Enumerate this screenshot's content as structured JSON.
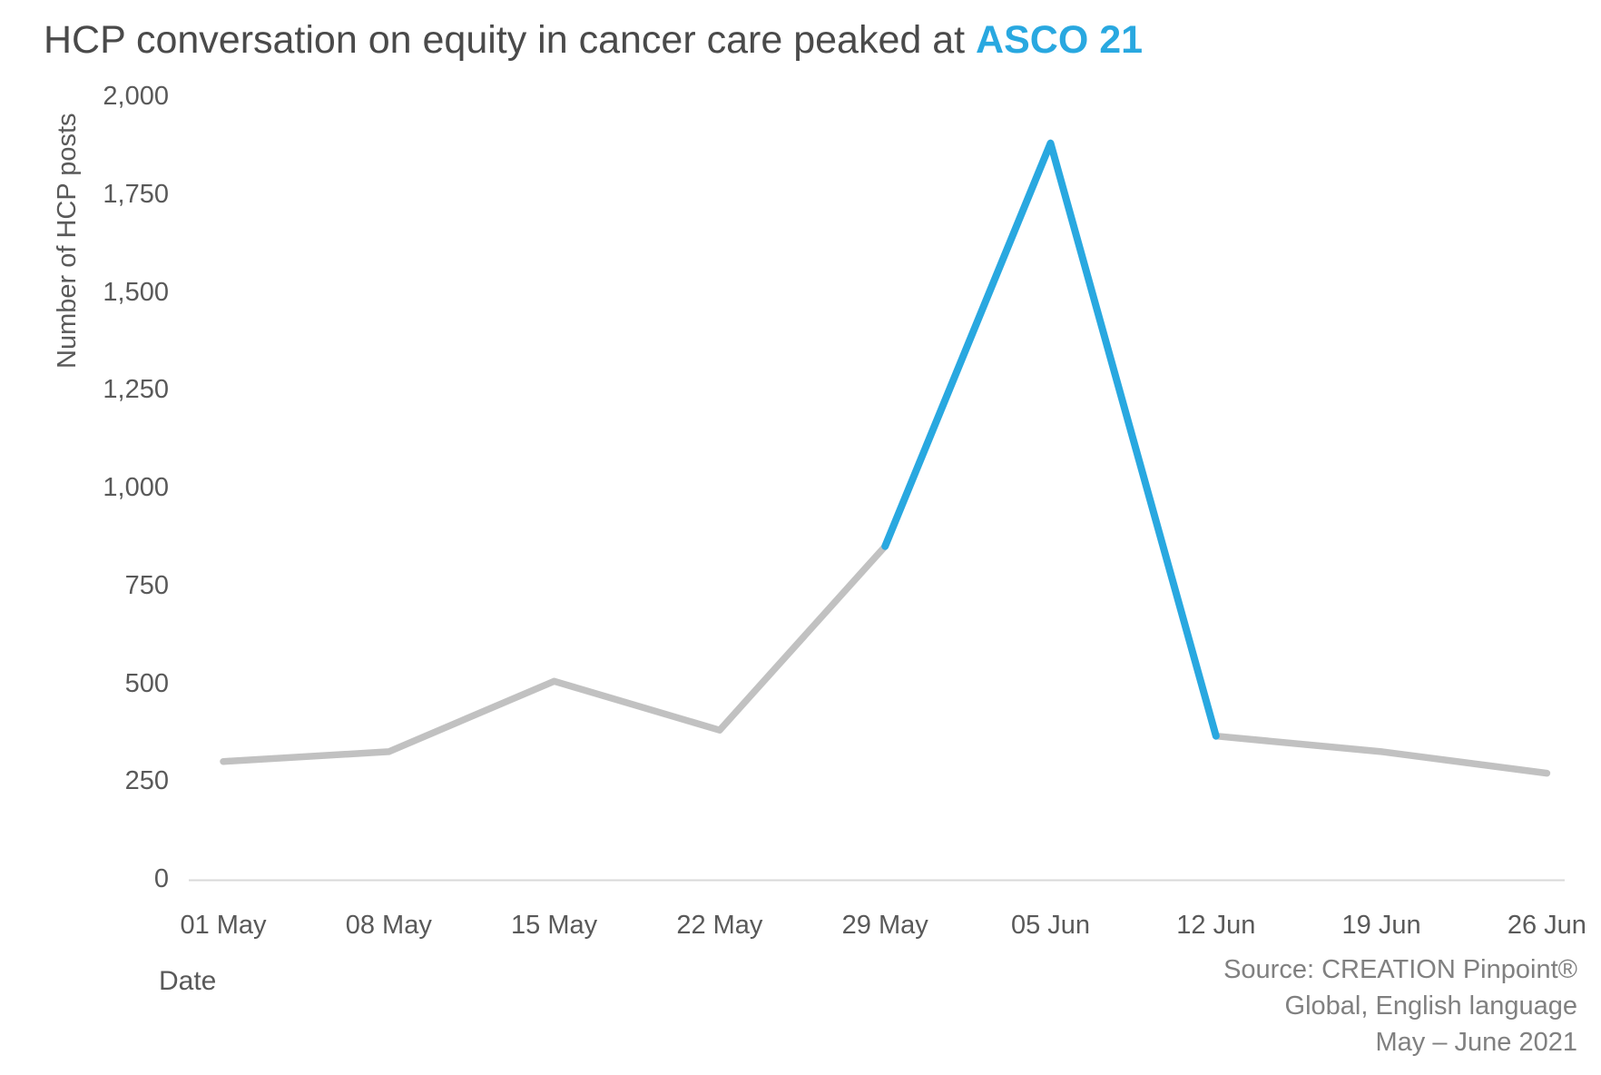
{
  "title": {
    "main": "HCP conversation on equity in cancer care peaked at ",
    "highlight": "ASCO 21"
  },
  "chart_data": {
    "type": "line",
    "categories": [
      "01 May",
      "08 May",
      "15 May",
      "22 May",
      "29 May",
      "05 Jun",
      "12 Jun",
      "19 Jun",
      "26 Jun"
    ],
    "series": [
      {
        "name": "Number of HCP posts",
        "values": [
          300,
          325,
          505,
          380,
          850,
          1880,
          365,
          325,
          270
        ]
      }
    ],
    "highlight_segment": {
      "from": "29 May",
      "to": "12 Jun",
      "from_index": 4,
      "to_index": 6
    },
    "title": "HCP conversation on equity in cancer care peaked at ASCO 21",
    "xlabel": "Date",
    "ylabel": "Number of HCP posts",
    "ylim": [
      0,
      2000
    ],
    "y_tick_step": 250,
    "y_ticks": [
      "0",
      "250",
      "500",
      "750",
      "1,000",
      "1,250",
      "1,500",
      "1,750",
      "2,000"
    ],
    "grid": "off",
    "legend": "none",
    "colors": {
      "line": "#c1c1c1",
      "highlight": "#29a8e0",
      "axis": "#d9d9d9",
      "tick_text": "#595959",
      "title_text": "#4a4a4a"
    }
  },
  "source": {
    "line1": "Source: CREATION Pinpoint®",
    "line2": "Global, English language",
    "line3": "May – June 2021"
  }
}
